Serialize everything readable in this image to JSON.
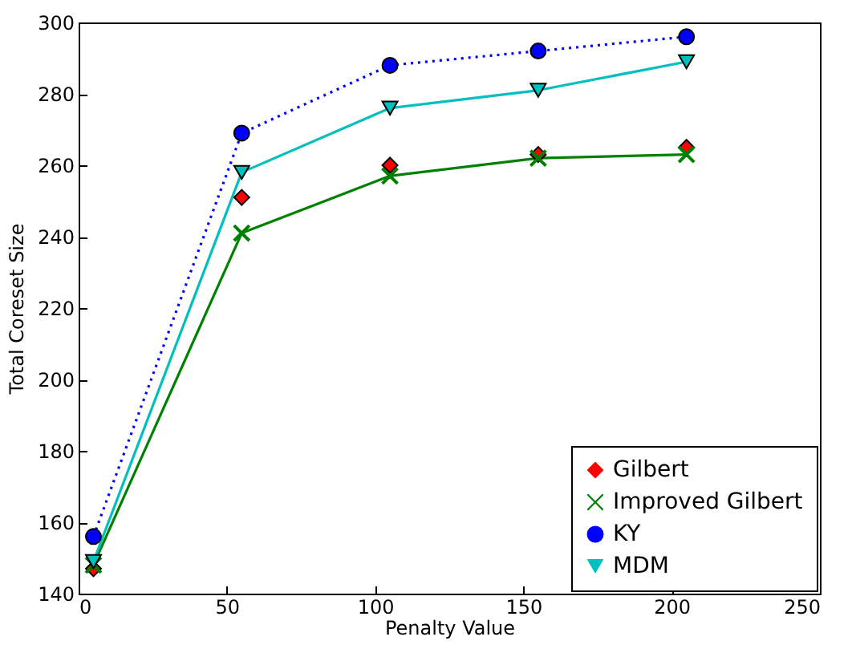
{
  "chart_data": {
    "type": "line",
    "xlabel": "Penalty Value",
    "ylabel": "Total Coreset Size",
    "x": [
      5,
      55,
      105,
      155,
      205
    ],
    "xlim": [
      0,
      250
    ],
    "xticks": [
      0,
      50,
      100,
      150,
      200,
      250
    ],
    "ylim": [
      140,
      300
    ],
    "yticks": [
      140,
      160,
      180,
      200,
      220,
      240,
      260,
      280,
      300
    ],
    "grid": false,
    "legend": "bottom right",
    "series": [
      {
        "name": "Gilbert",
        "type": "scatter",
        "color": "#ff0000",
        "marker": "diamond",
        "values": [
          147,
          251,
          260,
          263,
          265
        ]
      },
      {
        "name": "Improved Gilbert",
        "color": "#008000",
        "marker": "cross",
        "line_style": "solid",
        "values": [
          148,
          241,
          257,
          262,
          263
        ]
      },
      {
        "name": "KY",
        "color": "#0000ff",
        "marker": "circle",
        "line_style": "dotted",
        "values": [
          156,
          269,
          288,
          292,
          296
        ]
      },
      {
        "name": "MDM",
        "color": "#00bfbf",
        "marker": "triangle",
        "line_style": "solid",
        "values": [
          149,
          258,
          276,
          281,
          289
        ]
      }
    ]
  }
}
